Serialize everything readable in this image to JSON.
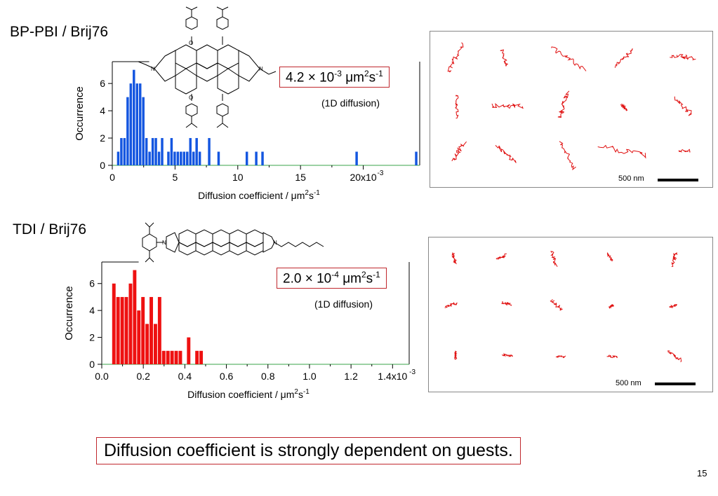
{
  "slide": {
    "page_number": "15",
    "conclusion": "Diffusion coefficient is strongly dependent on guests.",
    "colors": {
      "blue_bars": "#1456e0",
      "red_bars": "#ee1111",
      "box_border": "#c0272d",
      "tracks": "#e01010"
    }
  },
  "section1": {
    "title": "BP-PBI / Brij76",
    "value_mantissa": "4.2",
    "value_times": "×",
    "value_base": "10",
    "value_exp": "-3",
    "value_unit": "μm",
    "value_unit_exp1": "2",
    "value_unit_s": "s",
    "value_unit_exp2": "-1",
    "note": "(1D diffusion)",
    "scale_label": "500 nm",
    "molecule_labels": {
      "o_top": "O",
      "o_bottom": "O",
      "n_left": "N",
      "n_right": "N"
    },
    "icon": "molecule-structure-icon"
  },
  "section2": {
    "title": "TDI / Brij76",
    "value_mantissa": "2.0",
    "value_times": "×",
    "value_base": "10",
    "value_exp": "-4",
    "value_unit": "μm",
    "value_unit_exp1": "2",
    "value_unit_s": "s",
    "value_unit_exp2": "-1",
    "note": "(1D diffusion)",
    "scale_label": "500 nm",
    "molecule_labels": {
      "n_left": "N",
      "n_right": "N"
    },
    "icon": "molecule-structure-icon"
  },
  "chart_data": [
    {
      "type": "bar",
      "series_color": "#1456e0",
      "ylabel": "Occurrence",
      "xlabel": "Diffusion coefficient / μm",
      "xlabel_sup1": "2",
      "xlabel_s": "s",
      "xlabel_sup2": "-1",
      "xlim": [
        0,
        0.0245
      ],
      "ylim": [
        0,
        7.6
      ],
      "xticks": [
        {
          "v": 0,
          "label": "0"
        },
        {
          "v": 0.005,
          "label": "5"
        },
        {
          "v": 0.01,
          "label": "10"
        },
        {
          "v": 0.015,
          "label": "15"
        },
        {
          "v": 0.02,
          "label": "20x10"
        }
      ],
      "x_exponent_label": "-3",
      "yticks": [
        {
          "v": 0,
          "label": "0"
        },
        {
          "v": 2,
          "label": "2"
        },
        {
          "v": 4,
          "label": "4"
        },
        {
          "v": 6,
          "label": "6"
        }
      ],
      "bin_width": 0.00025,
      "bins": [
        {
          "x": 0.0005,
          "y": 1
        },
        {
          "x": 0.00075,
          "y": 2
        },
        {
          "x": 0.001,
          "y": 2
        },
        {
          "x": 0.00125,
          "y": 5
        },
        {
          "x": 0.0015,
          "y": 6
        },
        {
          "x": 0.00175,
          "y": 7
        },
        {
          "x": 0.002,
          "y": 6
        },
        {
          "x": 0.00225,
          "y": 6
        },
        {
          "x": 0.0025,
          "y": 5
        },
        {
          "x": 0.00275,
          "y": 2
        },
        {
          "x": 0.003,
          "y": 1
        },
        {
          "x": 0.00325,
          "y": 2
        },
        {
          "x": 0.0035,
          "y": 2
        },
        {
          "x": 0.00375,
          "y": 1
        },
        {
          "x": 0.004,
          "y": 2
        },
        {
          "x": 0.0045,
          "y": 1
        },
        {
          "x": 0.00475,
          "y": 2
        },
        {
          "x": 0.005,
          "y": 1
        },
        {
          "x": 0.00525,
          "y": 1
        },
        {
          "x": 0.0055,
          "y": 1
        },
        {
          "x": 0.00575,
          "y": 1
        },
        {
          "x": 0.006,
          "y": 1
        },
        {
          "x": 0.00625,
          "y": 2
        },
        {
          "x": 0.0065,
          "y": 1
        },
        {
          "x": 0.00675,
          "y": 2
        },
        {
          "x": 0.007,
          "y": 1
        },
        {
          "x": 0.00775,
          "y": 2
        },
        {
          "x": 0.0085,
          "y": 1
        },
        {
          "x": 0.01075,
          "y": 1
        },
        {
          "x": 0.0115,
          "y": 1
        },
        {
          "x": 0.012,
          "y": 1
        },
        {
          "x": 0.0195,
          "y": 1
        },
        {
          "x": 0.02425,
          "y": 1
        }
      ]
    },
    {
      "type": "bar",
      "series_color": "#ee1111",
      "ylabel": "Occurrence",
      "xlabel": "Diffusion coefficient / μm",
      "xlabel_sup1": "2",
      "xlabel_s": "s",
      "xlabel_sup2": "-1",
      "xlim": [
        0,
        0.00148
      ],
      "ylim": [
        0,
        7.6
      ],
      "xticks": [
        {
          "v": 0,
          "label": "0.0"
        },
        {
          "v": 0.0002,
          "label": "0.2"
        },
        {
          "v": 0.0004,
          "label": "0.4"
        },
        {
          "v": 0.0006,
          "label": "0.6"
        },
        {
          "v": 0.0008,
          "label": "0.8"
        },
        {
          "v": 0.001,
          "label": "1.0"
        },
        {
          "v": 0.0012,
          "label": "1.2"
        },
        {
          "v": 0.0014,
          "label": "1.4x10"
        }
      ],
      "x_exponent_label": "-3",
      "yticks": [
        {
          "v": 0,
          "label": "0"
        },
        {
          "v": 2,
          "label": "2"
        },
        {
          "v": 4,
          "label": "4"
        },
        {
          "v": 6,
          "label": "6"
        }
      ],
      "bin_width": 2e-05,
      "bins": [
        {
          "x": 6e-05,
          "y": 6
        },
        {
          "x": 8e-05,
          "y": 5
        },
        {
          "x": 0.0001,
          "y": 5
        },
        {
          "x": 0.00012,
          "y": 5
        },
        {
          "x": 0.00014,
          "y": 6
        },
        {
          "x": 0.00016,
          "y": 7
        },
        {
          "x": 0.00018,
          "y": 4
        },
        {
          "x": 0.0002,
          "y": 5
        },
        {
          "x": 0.00022,
          "y": 3
        },
        {
          "x": 0.00024,
          "y": 5
        },
        {
          "x": 0.00026,
          "y": 3
        },
        {
          "x": 0.00028,
          "y": 5
        },
        {
          "x": 0.0003,
          "y": 1
        },
        {
          "x": 0.00032,
          "y": 1
        },
        {
          "x": 0.00034,
          "y": 1
        },
        {
          "x": 0.00036,
          "y": 1
        },
        {
          "x": 0.00038,
          "y": 1
        },
        {
          "x": 0.00042,
          "y": 2
        },
        {
          "x": 0.00046,
          "y": 1
        },
        {
          "x": 0.00048,
          "y": 1
        }
      ]
    }
  ]
}
